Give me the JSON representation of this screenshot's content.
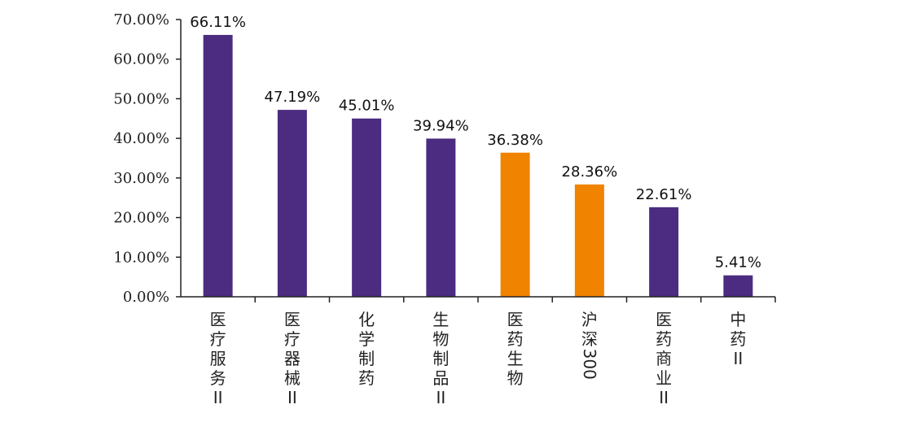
{
  "chart_data": {
    "type": "bar",
    "title": "",
    "xlabel": "",
    "ylabel": "",
    "ylim": [
      0,
      70
    ],
    "yticks": [
      "0.00%",
      "10.00%",
      "20.00%",
      "30.00%",
      "40.00%",
      "50.00%",
      "60.00%",
      "70.00%"
    ],
    "categories": [
      "医疗服务II",
      "医疗器械II",
      "化学制药",
      "生物制品II",
      "医药生物",
      "沪深300",
      "医药商业II",
      "中药II"
    ],
    "values": [
      66.11,
      47.19,
      45.01,
      39.94,
      36.38,
      28.36,
      22.61,
      5.41
    ],
    "labels": [
      "66.11%",
      "47.19%",
      "45.01%",
      "39.94%",
      "36.38%",
      "28.36%",
      "22.61%",
      "5.41%"
    ],
    "colors": [
      "#4b2c80",
      "#4b2c80",
      "#4b2c80",
      "#4b2c80",
      "#f08300",
      "#f08300",
      "#4b2c80",
      "#4b2c80"
    ],
    "grid": false,
    "legend": "none"
  }
}
